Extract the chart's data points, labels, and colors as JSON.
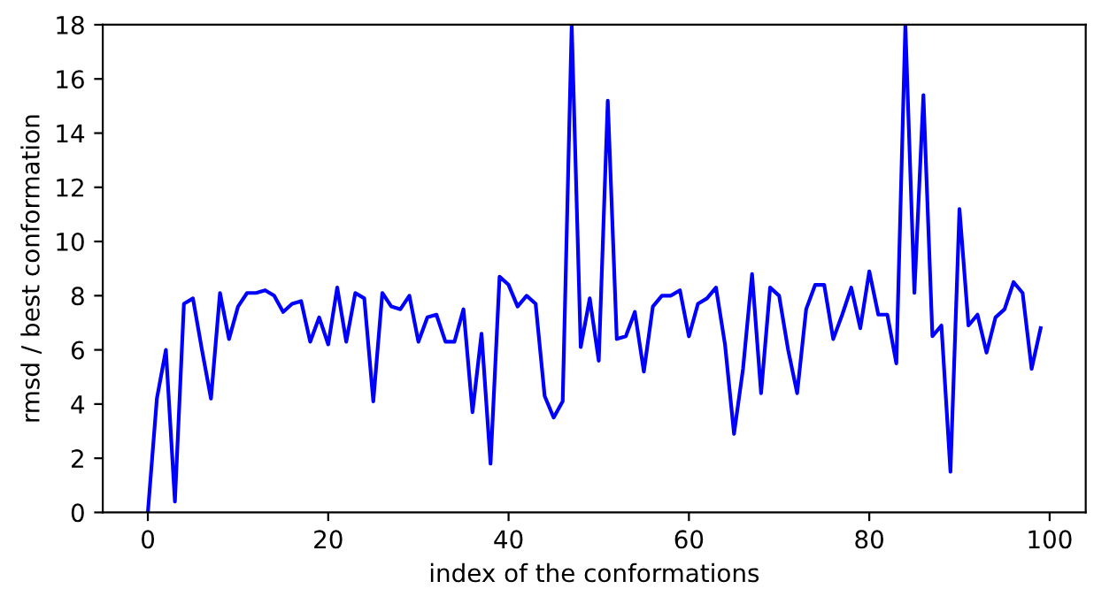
{
  "chart_data": {
    "type": "line",
    "xlabel": "index of the conformations",
    "ylabel": "rmsd / best conformation",
    "x": [
      0,
      1,
      2,
      3,
      4,
      5,
      6,
      7,
      8,
      9,
      10,
      11,
      12,
      13,
      14,
      15,
      16,
      17,
      18,
      19,
      20,
      21,
      22,
      23,
      24,
      25,
      26,
      27,
      28,
      29,
      30,
      31,
      32,
      33,
      34,
      35,
      36,
      37,
      38,
      39,
      40,
      41,
      42,
      43,
      44,
      45,
      46,
      47,
      48,
      49,
      50,
      51,
      52,
      53,
      54,
      55,
      56,
      57,
      58,
      59,
      60,
      61,
      62,
      63,
      64,
      65,
      66,
      67,
      68,
      69,
      70,
      71,
      72,
      73,
      74,
      75,
      76,
      77,
      78,
      79,
      80,
      81,
      82,
      83,
      84,
      85,
      86,
      87,
      88,
      89,
      90,
      91,
      92,
      93,
      94,
      95,
      96,
      97,
      98,
      99
    ],
    "series": [
      {
        "color": "#0000ff",
        "values": [
          0,
          4.2,
          6.0,
          0.4,
          7.7,
          7.9,
          6.0,
          4.2,
          8.1,
          6.4,
          7.6,
          8.1,
          8.1,
          8.2,
          8.0,
          7.4,
          7.7,
          7.8,
          6.3,
          7.2,
          6.2,
          8.3,
          6.3,
          8.1,
          7.9,
          4.1,
          8.1,
          7.6,
          7.5,
          8.0,
          6.3,
          7.2,
          7.3,
          6.3,
          6.3,
          7.5,
          3.7,
          6.6,
          1.8,
          8.7,
          8.4,
          7.6,
          8.0,
          7.7,
          4.3,
          3.5,
          4.1,
          18,
          6.1,
          7.9,
          5.6,
          15.2,
          6.4,
          6.5,
          7.4,
          5.2,
          7.6,
          8.0,
          8.0,
          8.2,
          6.5,
          7.7,
          7.9,
          8.3,
          6.2,
          2.9,
          5.3,
          8.8,
          4.4,
          8.3,
          8.0,
          6.0,
          4.4,
          7.5,
          8.4,
          8.4,
          6.4,
          7.3,
          8.3,
          6.8,
          8.9,
          7.3,
          7.3,
          5.5,
          18,
          8.1,
          15.4,
          6.5,
          6.9,
          1.5,
          11.2,
          6.9,
          7.3,
          5.9,
          7.2,
          7.5,
          8.5,
          8.1,
          5.3,
          6.8
        ]
      }
    ],
    "xlim": [
      -5,
      104
    ],
    "ylim": [
      0,
      18
    ],
    "xticks": [
      0,
      20,
      40,
      60,
      80,
      100
    ],
    "yticks": [
      0,
      2,
      4,
      6,
      8,
      10,
      12,
      14,
      16,
      18
    ],
    "grid": false,
    "legend": false,
    "marker": "none",
    "line_style": "solid"
  }
}
